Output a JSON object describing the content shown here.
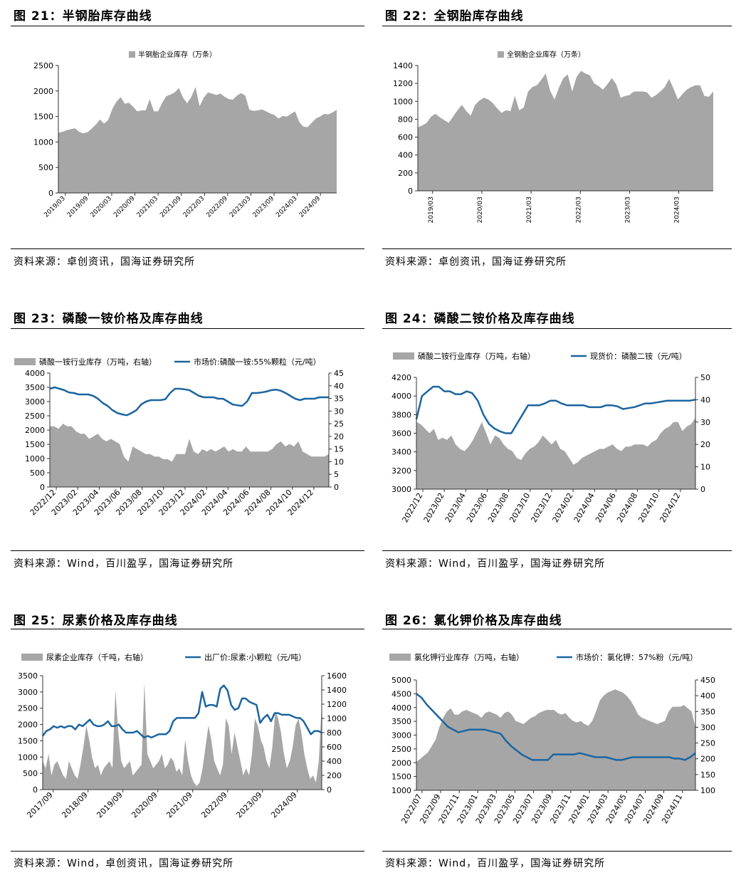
{
  "colors": {
    "area": "#a6a6a6",
    "line": "#1b65a0",
    "axis": "#333333",
    "rule": "#000000"
  },
  "panels": [
    {
      "title": "图 21：半钢胎库存曲线",
      "source": "资料来源：卓创资讯，国海证券研究所",
      "chart_data": {
        "type": "area",
        "legend": [
          "半钢胎企业库存（万条）"
        ],
        "legend_placement": "top-center",
        "x_labels": [
          "2019/03",
          "2019/09",
          "2020/03",
          "2020/09",
          "2021/03",
          "2021/09",
          "2022/03",
          "2022/09",
          "2023/03",
          "2023/09",
          "2024/03",
          "2024/09"
        ],
        "ylim": [
          0,
          2500
        ],
        "yticks": [
          0,
          500,
          1000,
          1500,
          2000,
          2500
        ],
        "area_values": [
          1180,
          1200,
          1230,
          1250,
          1270,
          1200,
          1170,
          1190,
          1260,
          1340,
          1440,
          1360,
          1430,
          1650,
          1790,
          1880,
          1750,
          1770,
          1690,
          1600,
          1620,
          1620,
          1840,
          1600,
          1600,
          1770,
          1900,
          1930,
          1970,
          2060,
          1870,
          1760,
          1880,
          2080,
          1700,
          1870,
          1970,
          1950,
          1920,
          1950,
          1890,
          1840,
          1830,
          1910,
          1960,
          1910,
          1630,
          1610,
          1620,
          1640,
          1600,
          1560,
          1530,
          1460,
          1510,
          1500,
          1550,
          1600,
          1390,
          1300,
          1290,
          1380,
          1460,
          1500,
          1550,
          1540,
          1580,
          1630
        ]
      }
    },
    {
      "title": "图 22：全钢胎库存曲线",
      "source": "资料来源：卓创资讯，国海证券研究所",
      "chart_data": {
        "type": "area",
        "legend": [
          "全钢胎企业库存（万条）"
        ],
        "legend_placement": "top-center",
        "x_labels": [
          "2019/03",
          "2020/03",
          "2021/03",
          "2022/03",
          "2023/03",
          "2024/03"
        ],
        "ylim": [
          0,
          1400
        ],
        "yticks": [
          0,
          200,
          400,
          600,
          800,
          1000,
          1200,
          1400
        ],
        "area_values": [
          710,
          730,
          760,
          830,
          860,
          820,
          790,
          760,
          830,
          900,
          960,
          890,
          840,
          960,
          1010,
          1040,
          1020,
          980,
          920,
          870,
          900,
          890,
          1060,
          900,
          930,
          1110,
          1160,
          1180,
          1240,
          1310,
          1120,
          1020,
          1150,
          1260,
          1300,
          1110,
          1270,
          1340,
          1310,
          1290,
          1200,
          1170,
          1130,
          1190,
          1260,
          1190,
          1040,
          1060,
          1070,
          1110,
          1110,
          1110,
          1100,
          1040,
          1070,
          1110,
          1160,
          1250,
          1140,
          1020,
          1080,
          1130,
          1160,
          1180,
          1180,
          1060,
          1050,
          1110
        ]
      }
    },
    {
      "title": "图 23：磷酸一铵价格及库存曲线",
      "source": "资料来源：Wind，百川盈孚，国海证券研究所",
      "chart_data": {
        "type": "area+line",
        "legend": [
          "磷酸一铵行业库存（万吨，右轴）",
          "市场价:磷酸一铵:55%颗粒（元/吨）"
        ],
        "legend_placement": "top",
        "x_labels": [
          "2022/12",
          "2023/02",
          "2023/04",
          "2023/06",
          "2023/08",
          "2023/10",
          "2023/12",
          "2024/02",
          "2024/04",
          "2024/06",
          "2024/08",
          "2024/10",
          "2024/12"
        ],
        "ylim_left": [
          0,
          4000
        ],
        "yticks_left": [
          0,
          500,
          1000,
          1500,
          2000,
          2500,
          3000,
          3500,
          4000
        ],
        "ylim_right": [
          0,
          45
        ],
        "yticks_right": [
          0,
          5,
          10,
          15,
          20,
          25,
          30,
          35,
          40,
          45
        ],
        "area_values": [
          24,
          24,
          23,
          25,
          24,
          24,
          22,
          21,
          21,
          19,
          20,
          21,
          19,
          18,
          19,
          18,
          17,
          12,
          10,
          16,
          15,
          14,
          13,
          13,
          12,
          12,
          11,
          11,
          10,
          13,
          13,
          13,
          19,
          14,
          13,
          15,
          14,
          15,
          14,
          15,
          16,
          14,
          15,
          14,
          14,
          16,
          14,
          14,
          14,
          14,
          14,
          15,
          17,
          18,
          16,
          17,
          16,
          18,
          14,
          13,
          12,
          12,
          12,
          12,
          13
        ],
        "line_values": [
          3450,
          3500,
          3450,
          3400,
          3320,
          3300,
          3250,
          3250,
          3250,
          3200,
          3100,
          2950,
          2850,
          2700,
          2600,
          2550,
          2520,
          2600,
          2700,
          2900,
          3000,
          3050,
          3050,
          3050,
          3080,
          3300,
          3450,
          3450,
          3430,
          3400,
          3300,
          3200,
          3150,
          3150,
          3150,
          3100,
          3100,
          3000,
          2900,
          2870,
          2850,
          3000,
          3300,
          3300,
          3320,
          3350,
          3400,
          3420,
          3380,
          3300,
          3200,
          3100,
          3050,
          3100,
          3100,
          3100,
          3150,
          3150,
          3150
        ]
      }
    },
    {
      "title": "图 24：磷酸二铵价格及库存曲线",
      "source": "资料来源：Wind，百川盈孚，国海证券研究所",
      "chart_data": {
        "type": "area+line",
        "legend": [
          "磷酸二铵行业库存（万吨，右轴）",
          "现货价：磷酸二铵（元/吨）"
        ],
        "legend_placement": "top",
        "x_labels": [
          "2022/12",
          "2023/02",
          "2023/04",
          "2023/06",
          "2023/08",
          "2023/10",
          "2023/12",
          "2024/02",
          "2024/04",
          "2024/06",
          "2024/08",
          "2024/10",
          "2024/12"
        ],
        "ylim_left": [
          3000,
          4200
        ],
        "yticks_left": [
          3000,
          3200,
          3400,
          3600,
          3800,
          4000,
          4200
        ],
        "ylim_right": [
          0,
          50
        ],
        "yticks_right": [
          0,
          10,
          20,
          30,
          40,
          50
        ],
        "area_values": [
          30,
          29,
          27,
          25,
          27,
          22,
          23,
          22,
          24,
          20,
          18,
          17,
          19,
          22,
          26,
          30,
          25,
          20,
          24,
          23,
          20,
          18,
          17,
          14,
          13,
          16,
          18,
          19,
          21,
          24,
          22,
          20,
          22,
          18,
          17,
          14,
          11,
          12,
          14,
          15,
          16,
          17,
          18,
          18,
          19,
          20,
          18,
          17,
          19,
          19,
          20,
          20,
          20,
          19,
          21,
          22,
          25,
          27,
          28,
          30,
          30,
          26,
          28,
          29,
          32
        ],
        "line_values": [
          3750,
          4000,
          4050,
          4100,
          4100,
          4050,
          4050,
          4020,
          4020,
          4050,
          4030,
          3950,
          3800,
          3700,
          3650,
          3620,
          3600,
          3600,
          3700,
          3800,
          3900,
          3900,
          3900,
          3920,
          3950,
          3950,
          3920,
          3900,
          3900,
          3900,
          3900,
          3880,
          3880,
          3880,
          3900,
          3900,
          3890,
          3860,
          3870,
          3880,
          3900,
          3920,
          3920,
          3930,
          3940,
          3950,
          3950,
          3950,
          3950,
          3950,
          3960
        ]
      }
    },
    {
      "title": "图 25：尿素价格及库存曲线",
      "source": "资料来源：Wind，卓创资讯，国海证券研究所",
      "chart_data": {
        "type": "area+line",
        "legend": [
          "尿素企业库存（千吨，右轴）",
          "出厂价:尿素:小颗粒（元/吨）"
        ],
        "legend_placement": "top",
        "x_labels": [
          "2017/09",
          "2018/09",
          "2019/09",
          "2020/09",
          "2021/09",
          "2022/09",
          "2023/09",
          "2024/09"
        ],
        "ylim_left": [
          0,
          3500
        ],
        "yticks_left": [
          0,
          500,
          1000,
          1500,
          2000,
          2500,
          3000,
          3500
        ],
        "ylim_right": [
          0,
          1600
        ],
        "yticks_right": [
          0,
          200,
          400,
          600,
          800,
          1000,
          1200,
          1400,
          1600
        ],
        "area_values": [
          400,
          300,
          500,
          200,
          350,
          400,
          300,
          200,
          150,
          400,
          300,
          200,
          150,
          350,
          600,
          900,
          700,
          450,
          300,
          350,
          200,
          300,
          350,
          400,
          300,
          1400,
          800,
          400,
          300,
          350,
          400,
          200,
          250,
          300,
          350,
          1500,
          500,
          400,
          300,
          350,
          400,
          500,
          300,
          350,
          450,
          400,
          250,
          300,
          200,
          700,
          400,
          200,
          100,
          50,
          100,
          300,
          600,
          900,
          700,
          400,
          300,
          200,
          350,
          1000,
          900,
          500,
          800,
          600,
          400,
          200,
          300,
          200,
          500,
          1000,
          900,
          700,
          600,
          400,
          300,
          600,
          1100,
          1000,
          800,
          500,
          300,
          400,
          600,
          900,
          1000,
          800,
          500,
          300,
          150,
          200,
          100,
          400,
          1200
        ],
        "line_values": [
          1650,
          1800,
          1850,
          1950,
          1900,
          1950,
          1900,
          1950,
          1950,
          1850,
          2000,
          1950,
          2050,
          2150,
          2000,
          1950,
          1950,
          2000,
          2100,
          1950,
          1950,
          2000,
          1850,
          1750,
          1750,
          1750,
          1800,
          1700,
          1600,
          1650,
          1600,
          1650,
          1700,
          1700,
          1700,
          1800,
          2100,
          2200,
          2200,
          2200,
          2200,
          2200,
          2200,
          2350,
          3000,
          2550,
          2600,
          2600,
          2550,
          3100,
          3200,
          3050,
          2600,
          2450,
          2500,
          2800,
          2800,
          2700,
          2650,
          2600,
          2050,
          2200,
          2300,
          2100,
          2350,
          2350,
          2300,
          2300,
          2300,
          2250,
          2200,
          2200,
          2100,
          1900,
          1700,
          1800,
          1800,
          1750
        ]
      }
    },
    {
      "title": "图 26：氯化钾价格及库存曲线",
      "source": "资料来源：Wind，百川盈孚，国海证券研究所",
      "chart_data": {
        "type": "area+line",
        "legend": [
          "氯化钾行业库存（万吨，右轴）",
          "市场价：氯化钾：57%粉（元/吨）"
        ],
        "legend_placement": "top",
        "x_labels": [
          "2022/07",
          "2022/09",
          "2022/11",
          "2023/01",
          "2023/03",
          "2023/05",
          "2023/07",
          "2023/09",
          "2023/11",
          "2024/01",
          "2024/03",
          "2024/05",
          "2024/07",
          "2024/09",
          "2024/11"
        ],
        "ylim_left": [
          1000,
          5000
        ],
        "yticks_left": [
          1000,
          1500,
          2000,
          2500,
          3000,
          3500,
          4000,
          4500,
          5000
        ],
        "ylim_right": [
          100,
          450
        ],
        "yticks_right": [
          100,
          150,
          200,
          250,
          300,
          350,
          400,
          450
        ],
        "area_values": [
          190,
          200,
          210,
          220,
          240,
          260,
          300,
          330,
          350,
          360,
          340,
          340,
          350,
          355,
          350,
          345,
          340,
          330,
          345,
          350,
          345,
          340,
          330,
          345,
          350,
          340,
          320,
          315,
          310,
          320,
          330,
          335,
          345,
          350,
          355,
          355,
          355,
          345,
          340,
          345,
          330,
          320,
          315,
          320,
          310,
          305,
          320,
          350,
          385,
          400,
          410,
          415,
          420,
          415,
          410,
          400,
          385,
          365,
          340,
          330,
          325,
          320,
          315,
          310,
          315,
          320,
          350,
          365,
          365,
          365,
          370,
          360,
          350,
          300
        ],
        "line_values": [
          4500,
          4350,
          4100,
          3900,
          3700,
          3500,
          3300,
          3200,
          3100,
          3150,
          3200,
          3200,
          3200,
          3200,
          3150,
          3100,
          3050,
          2800,
          2600,
          2450,
          2300,
          2200,
          2100,
          2100,
          2100,
          2100,
          2300,
          2300,
          2300,
          2300,
          2300,
          2350,
          2300,
          2250,
          2200,
          2200,
          2200,
          2150,
          2100,
          2100,
          2150,
          2200,
          2200,
          2200,
          2200,
          2200,
          2200,
          2200,
          2200,
          2150,
          2150,
          2100,
          2200,
          2350
        ]
      }
    }
  ]
}
